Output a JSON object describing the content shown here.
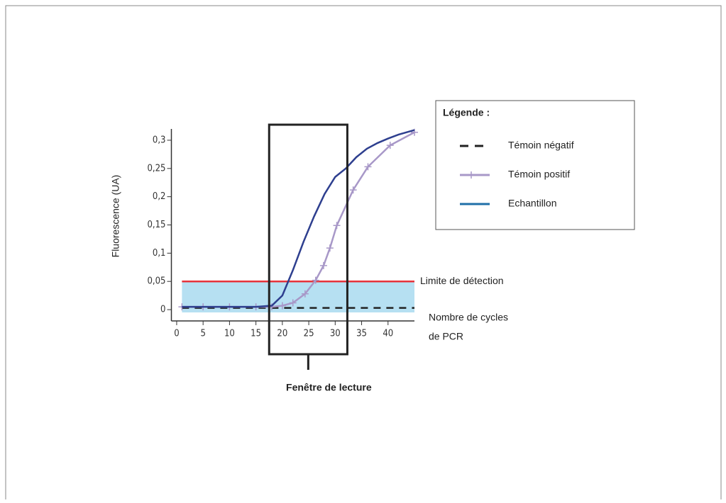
{
  "chart_data": {
    "type": "line",
    "ylabel": "Fluorescence (UA)",
    "xlabel": [
      "Nombre de cycles",
      "de PCR"
    ],
    "xlim": [
      -1,
      45
    ],
    "ylim": [
      -0.02,
      0.32
    ],
    "xticks": [
      0,
      5,
      10,
      15,
      20,
      25,
      30,
      35,
      40
    ],
    "yticks": [
      0,
      {
        "value": 0.05,
        "label": "0,05"
      },
      {
        "value": 0.1,
        "label": "0,1"
      },
      {
        "value": 0.15,
        "label": "0,15"
      },
      {
        "value": 0.2,
        "label": "0,2"
      },
      {
        "value": 0.25,
        "label": "0,25"
      },
      {
        "value": 0.3,
        "label": "0,3"
      }
    ],
    "legend_title": "Légende :",
    "legend": "upper right",
    "series": [
      {
        "name": "Témoin négatif",
        "color": "#222222",
        "style": "dashed",
        "x": [
          1,
          45
        ],
        "values": [
          0.003,
          0.003
        ]
      },
      {
        "name": "Témoin positif",
        "color": "#a898c8",
        "style": "markers",
        "x": [
          1,
          5,
          10,
          15,
          18,
          20,
          22,
          24.3,
          26.3,
          27.8,
          29,
          30.3,
          33.4,
          36.2,
          40.4,
          45
        ],
        "values": [
          0.005,
          0.005,
          0.005,
          0.005,
          0.005,
          0.007,
          0.012,
          0.028,
          0.052,
          0.078,
          0.109,
          0.149,
          0.212,
          0.253,
          0.291,
          0.314
        ]
      },
      {
        "name": "Echantillon",
        "color": "#2e3f8f",
        "legend_color": "#1f6fa8",
        "style": "solid",
        "x": [
          1,
          5,
          10,
          15,
          18,
          20,
          22,
          24,
          26,
          28,
          30,
          32,
          34,
          36,
          38,
          40,
          42,
          45
        ],
        "values": [
          0.005,
          0.005,
          0.005,
          0.005,
          0.007,
          0.025,
          0.07,
          0.12,
          0.165,
          0.205,
          0.235,
          0.25,
          0.27,
          0.285,
          0.295,
          0.303,
          0.31,
          0.318
        ]
      }
    ],
    "threshold": {
      "value": 0.05,
      "label": "Limite de détection",
      "color": "#e8333a",
      "band_color": "#a9daf0"
    },
    "reading_window": {
      "x": [
        17.5,
        32.3
      ],
      "label": "Fenêtre de lecture"
    }
  }
}
